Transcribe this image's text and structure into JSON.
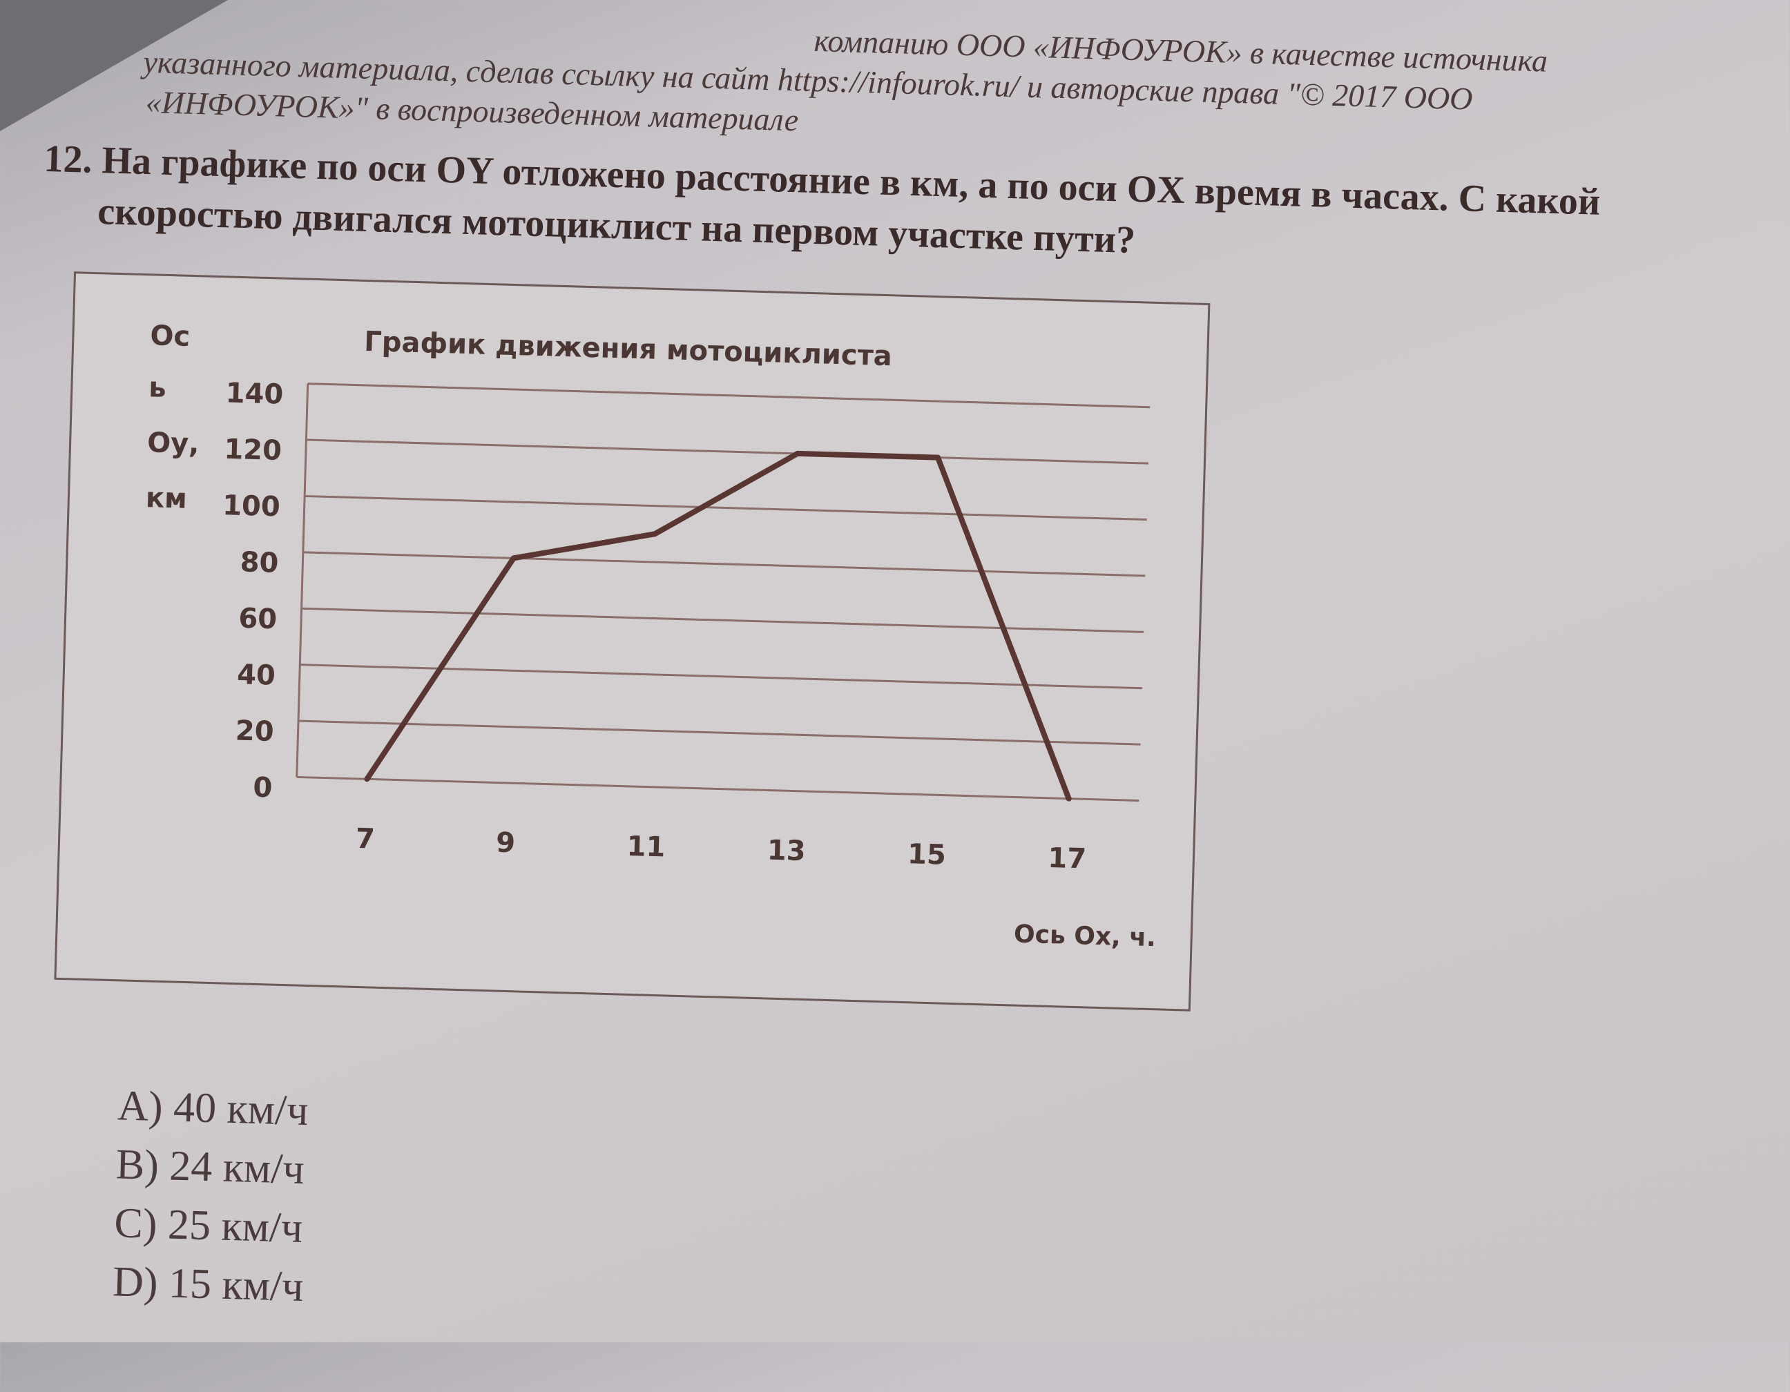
{
  "header": {
    "line1": "компанию ООО «ИНФОУРОК» в качестве источника",
    "line2": "указанного материала, сделав ссылку на сайт https://infourok.ru/ и авторские права \"© 2017 ООО",
    "line3": "«ИНФОУРОК»\" в воспроизведенном материале"
  },
  "question": {
    "line1": "12. На графике по оси OY отложено расстояние в км, а по оси OX время в часах. С какой",
    "line2": "скоростью двигался мотоциклист на первом участке пути?"
  },
  "chart_data": {
    "type": "line",
    "title": "График движения мотоциклиста",
    "ylabel_lines": [
      "Ос",
      "ь",
      "Оу,",
      "км"
    ],
    "xlabel": "Ось Ох, ч.",
    "x": [
      7,
      9,
      11,
      13,
      15,
      17
    ],
    "y": [
      0,
      80,
      90,
      120,
      120,
      0
    ],
    "x_ticks": [
      "7",
      "9",
      "11",
      "13",
      "15",
      "17"
    ],
    "y_ticks": [
      "0",
      "20",
      "40",
      "60",
      "80",
      "100",
      "120",
      "140"
    ],
    "ylim": [
      0,
      140
    ],
    "grid": "horizontal",
    "line_color": "#5a3632"
  },
  "answers": [
    "A) 40 км/ч",
    "B) 24 км/ч",
    "C) 25 км/ч",
    "D) 15 км/ч"
  ]
}
